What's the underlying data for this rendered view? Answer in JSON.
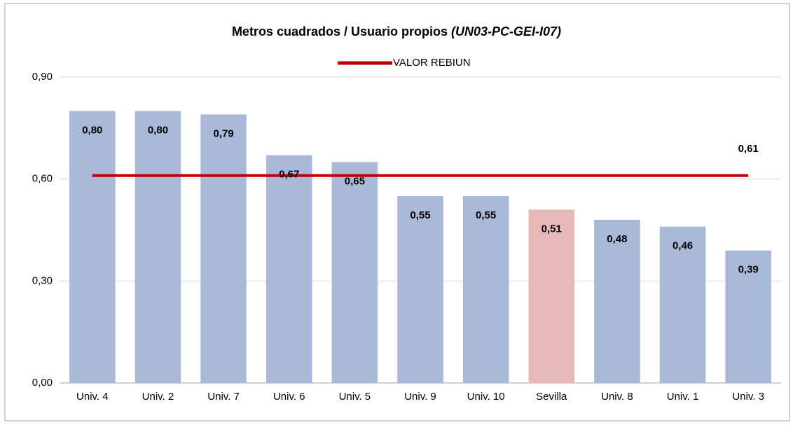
{
  "chart_data": {
    "type": "bar",
    "title": "Metros cuadrados / Usuario propios",
    "title_code": "(UN03-PC-GEI-I07)",
    "categories": [
      "Univ. 4",
      "Univ. 2",
      "Univ. 7",
      "Univ. 6",
      "Univ. 5",
      "Univ. 9",
      "Univ. 10",
      "Sevilla",
      "Univ. 8",
      "Univ. 1",
      "Univ. 3"
    ],
    "values": [
      0.8,
      0.8,
      0.79,
      0.67,
      0.65,
      0.55,
      0.55,
      0.51,
      0.48,
      0.46,
      0.39
    ],
    "value_labels": [
      "0,80",
      "0,80",
      "0,79",
      "0,67",
      "0,65",
      "0,55",
      "0,55",
      "0,51",
      "0,48",
      "0,46",
      "0,39"
    ],
    "colors": [
      "#a9b9d8",
      "#a9b9d8",
      "#a9b9d8",
      "#a9b9d8",
      "#a9b9d8",
      "#a9b9d8",
      "#a9b9d8",
      "#e6b8b7",
      "#a9b9d8",
      "#a9b9d8",
      "#a9b9d8"
    ],
    "reference_line": {
      "name": "VALOR REBIUN",
      "value": 0.61,
      "value_label": "0,61",
      "color": "#c00000"
    },
    "ylim": [
      0,
      0.9
    ],
    "yticks": [
      {
        "value": 0,
        "label": "0,00"
      },
      {
        "value": 0.3,
        "label": "0,30"
      },
      {
        "value": 0.6,
        "label": "0,60"
      },
      {
        "value": 0.9,
        "label": "0,90"
      }
    ],
    "grid": true,
    "legend": "top"
  }
}
